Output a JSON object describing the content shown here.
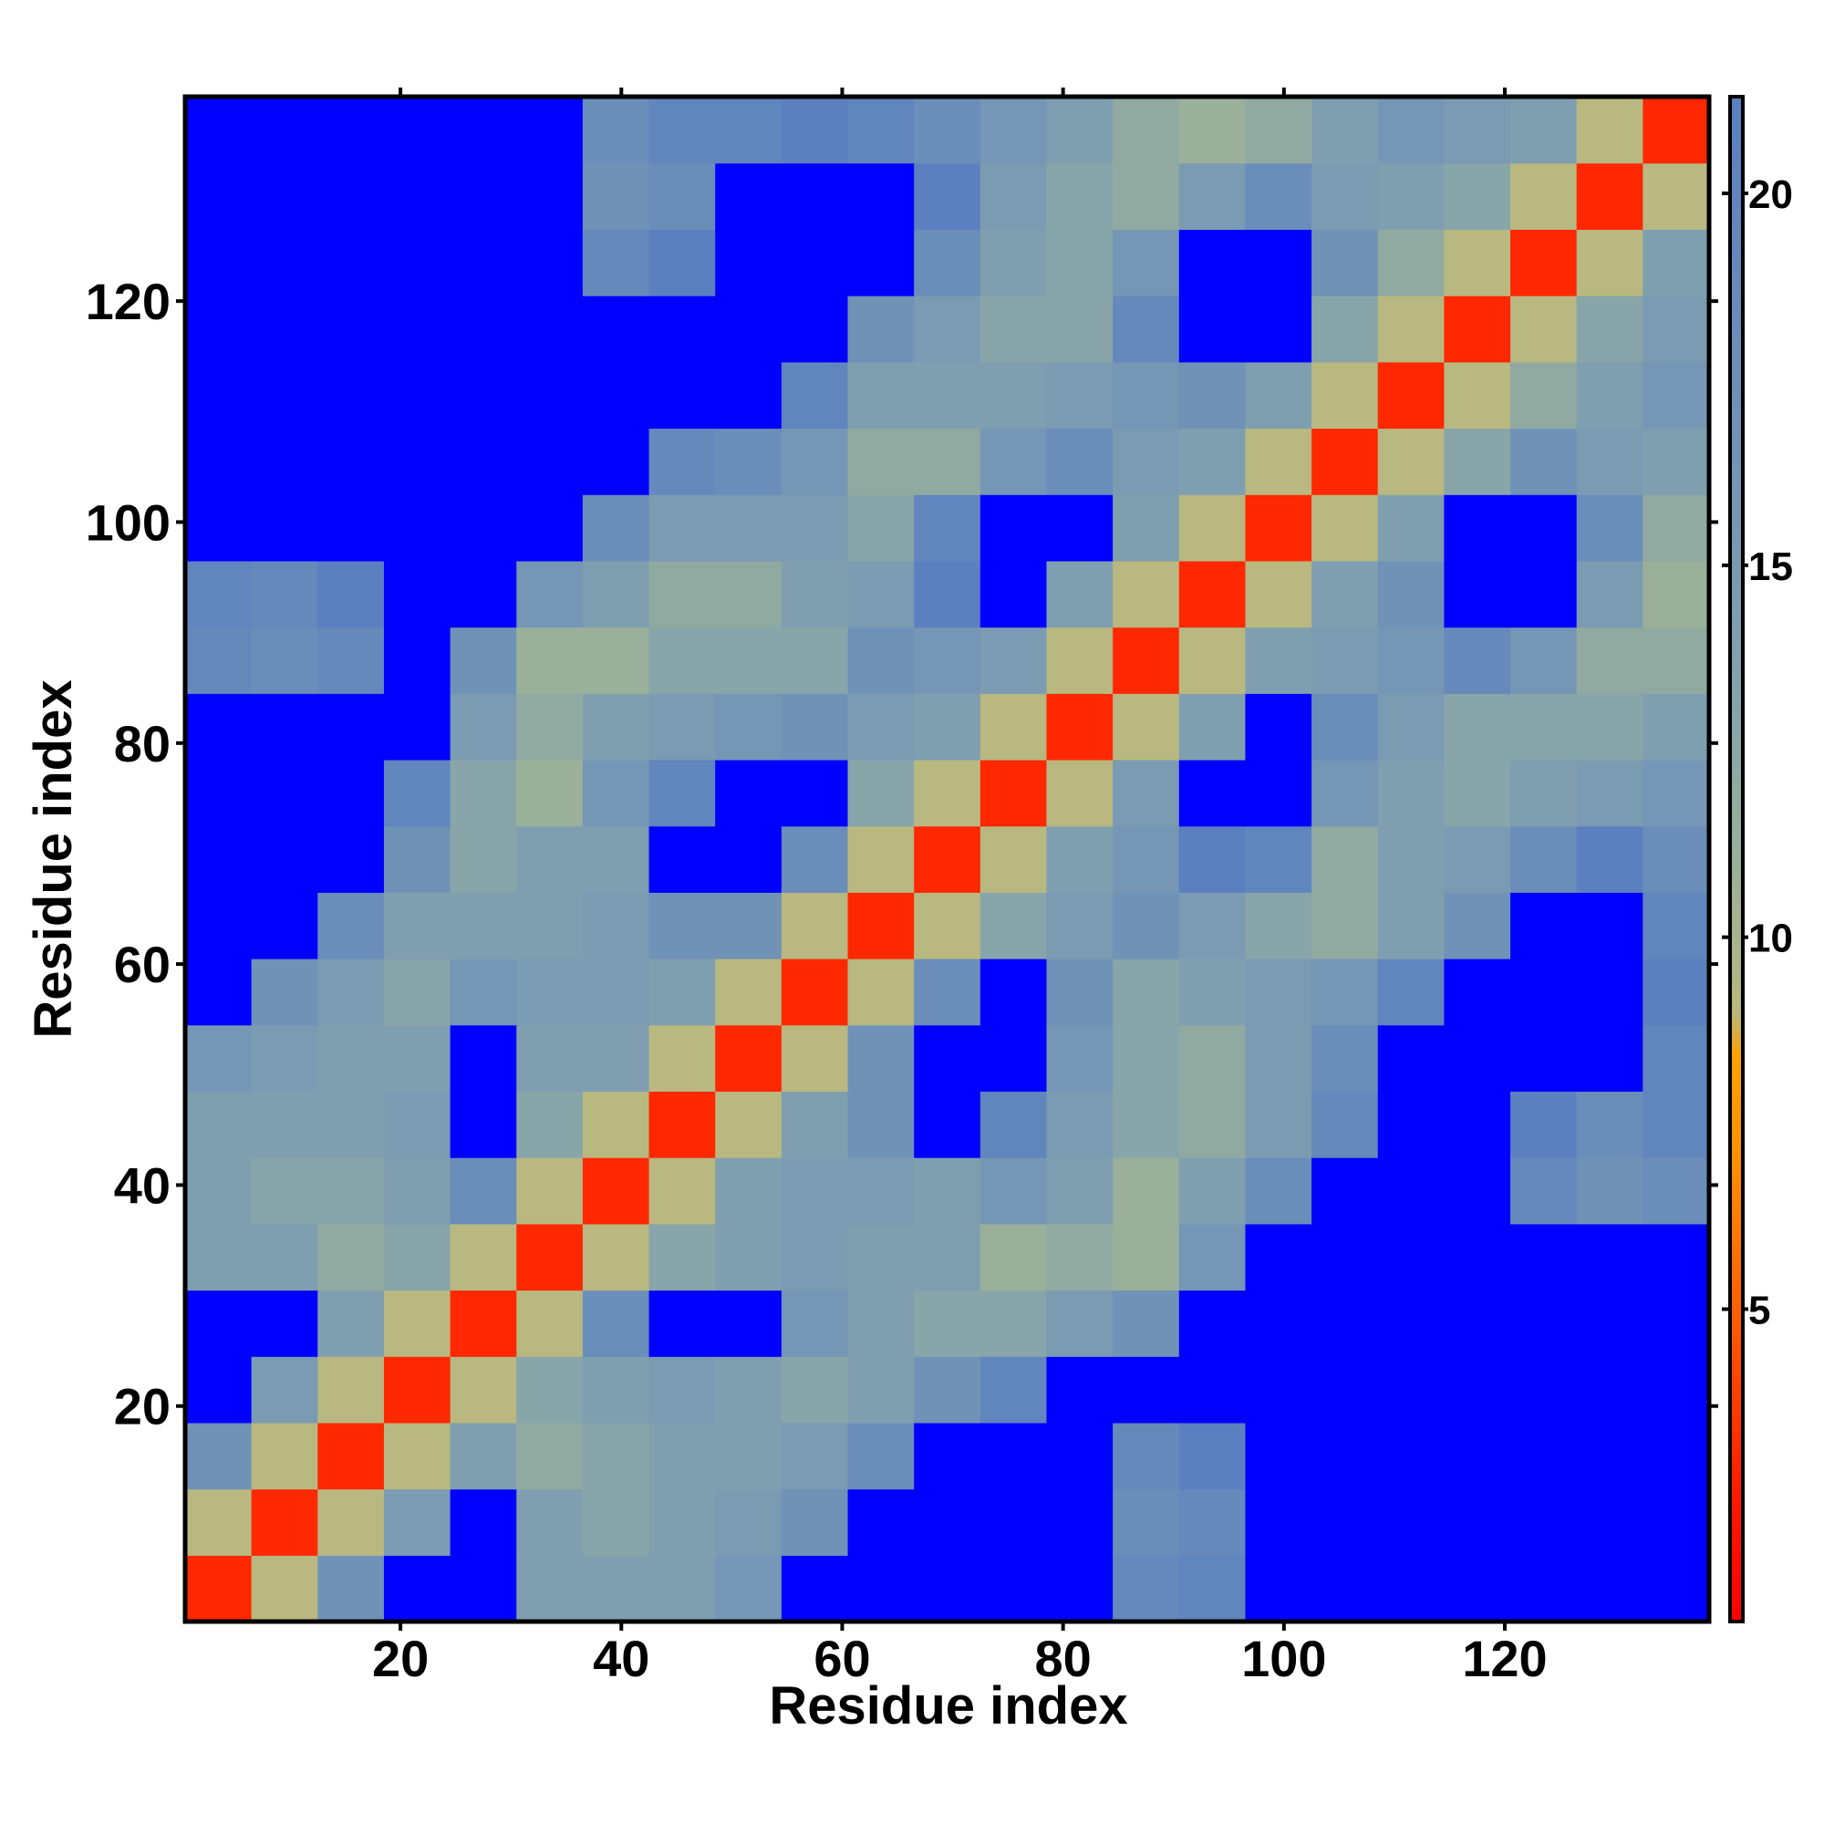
{
  "chart_data": {
    "type": "heatmap",
    "xlabel": "Residue index",
    "ylabel": "Residue index",
    "x": [
      1,
      7,
      13,
      19,
      25,
      31,
      37,
      43,
      49,
      55,
      61,
      67,
      73,
      79,
      85,
      91,
      97,
      103,
      109,
      115,
      121,
      127,
      133
    ],
    "y": [
      1,
      7,
      13,
      19,
      25,
      31,
      37,
      43,
      49,
      55,
      61,
      67,
      73,
      79,
      85,
      91,
      97,
      103,
      109,
      115,
      121,
      127,
      133
    ],
    "values": [
      [
        3,
        9,
        17,
        25,
        25,
        14,
        14,
        14,
        16,
        25,
        25,
        25,
        25,
        25,
        19,
        20,
        25,
        25,
        25,
        25,
        25,
        25,
        25
      ],
      [
        9,
        3,
        9,
        15,
        22,
        14,
        13,
        14,
        15,
        17,
        22,
        25,
        25,
        22,
        18,
        19,
        23,
        25,
        25,
        25,
        25,
        25,
        25
      ],
      [
        17,
        9,
        3,
        9,
        14,
        12,
        13,
        14,
        14,
        15,
        18,
        22,
        25,
        23,
        19,
        21,
        23,
        25,
        25,
        25,
        25,
        25,
        25
      ],
      [
        25,
        15,
        9,
        3,
        9,
        13,
        14,
        15,
        14,
        13,
        14,
        17,
        20,
        23,
        22,
        22,
        23,
        25,
        25,
        25,
        25,
        25,
        25
      ],
      [
        25,
        22,
        14,
        9,
        3,
        9,
        18,
        24,
        22,
        16,
        14,
        13,
        13,
        15,
        17,
        22,
        23,
        25,
        25,
        25,
        25,
        25,
        25
      ],
      [
        14,
        14,
        12,
        13,
        9,
        3,
        9,
        13,
        14,
        15,
        14,
        14,
        11,
        12,
        11,
        16,
        22,
        25,
        23,
        24,
        23,
        23,
        24
      ],
      [
        14,
        13,
        13,
        14,
        18,
        9,
        3,
        9,
        14,
        15,
        15,
        14,
        16,
        14,
        11,
        14,
        18,
        22,
        23,
        24,
        19,
        17,
        18
      ],
      [
        14,
        14,
        14,
        15,
        24,
        13,
        9,
        3,
        9,
        14,
        17,
        22,
        20,
        15,
        13,
        12,
        15,
        19,
        22,
        24,
        21,
        18,
        20
      ],
      [
        16,
        15,
        14,
        14,
        22,
        14,
        14,
        9,
        3,
        9,
        17,
        25,
        24,
        16,
        13,
        12,
        15,
        18,
        22,
        25,
        25,
        22,
        20
      ],
      [
        25,
        17,
        15,
        13,
        16,
        15,
        15,
        14,
        9,
        3,
        9,
        18,
        22,
        17,
        13,
        14,
        15,
        16,
        20,
        24,
        25,
        23,
        21
      ],
      [
        25,
        22,
        18,
        14,
        14,
        14,
        15,
        17,
        17,
        9,
        3,
        9,
        13,
        15,
        17,
        15,
        13,
        12,
        14,
        17,
        22,
        24,
        20
      ],
      [
        25,
        25,
        22,
        17,
        13,
        14,
        14,
        22,
        25,
        18,
        9,
        3,
        9,
        14,
        16,
        21,
        20,
        12,
        14,
        15,
        18,
        21,
        18
      ],
      [
        25,
        25,
        25,
        20,
        13,
        11,
        16,
        20,
        24,
        22,
        13,
        9,
        3,
        9,
        15,
        23,
        25,
        16,
        14,
        13,
        14,
        15,
        16
      ],
      [
        25,
        22,
        23,
        23,
        15,
        12,
        14,
        15,
        16,
        17,
        15,
        14,
        9,
        3,
        9,
        14,
        22,
        18,
        15,
        13,
        13,
        13,
        14
      ],
      [
        19,
        18,
        19,
        22,
        17,
        11,
        11,
        13,
        13,
        13,
        17,
        16,
        15,
        9,
        3,
        9,
        14,
        15,
        16,
        19,
        16,
        12,
        12
      ],
      [
        20,
        19,
        21,
        22,
        22,
        16,
        14,
        12,
        12,
        14,
        15,
        21,
        23,
        14,
        9,
        3,
        9,
        14,
        17,
        24,
        25,
        15,
        11
      ],
      [
        25,
        23,
        23,
        23,
        23,
        22,
        18,
        15,
        15,
        15,
        13,
        20,
        25,
        22,
        14,
        9,
        3,
        9,
        14,
        22,
        25,
        18,
        12
      ],
      [
        25,
        25,
        25,
        25,
        25,
        25,
        22,
        19,
        18,
        16,
        12,
        12,
        16,
        18,
        15,
        14,
        9,
        3,
        9,
        13,
        17,
        15,
        14
      ],
      [
        25,
        25,
        25,
        25,
        25,
        23,
        23,
        22,
        22,
        20,
        14,
        14,
        14,
        15,
        16,
        17,
        14,
        9,
        3,
        9,
        12,
        14,
        16
      ],
      [
        25,
        25,
        25,
        25,
        25,
        24,
        24,
        24,
        25,
        24,
        17,
        15,
        13,
        13,
        19,
        24,
        22,
        13,
        9,
        3,
        9,
        13,
        15
      ],
      [
        25,
        25,
        25,
        25,
        25,
        23,
        19,
        21,
        25,
        25,
        22,
        18,
        14,
        13,
        16,
        25,
        25,
        17,
        12,
        9,
        3,
        9,
        14
      ],
      [
        25,
        25,
        25,
        25,
        25,
        23,
        17,
        18,
        22,
        23,
        24,
        21,
        15,
        13,
        12,
        15,
        18,
        15,
        14,
        13,
        9,
        3,
        9
      ],
      [
        25,
        25,
        25,
        25,
        25,
        24,
        18,
        20,
        20,
        21,
        20,
        18,
        16,
        14,
        12,
        11,
        12,
        14,
        16,
        15,
        14,
        9,
        3
      ]
    ],
    "xlim": [
      0.5,
      138.5
    ],
    "ylim": [
      0.5,
      138.5
    ],
    "xticks": [
      20,
      40,
      60,
      80,
      100,
      120
    ],
    "yticks": [
      20,
      40,
      60,
      80,
      100,
      120
    ],
    "clim": [
      0.8,
      21.3
    ],
    "cticks": [
      5,
      10,
      15,
      20
    ],
    "colorscale": [
      {
        "value": 0.8,
        "color": "#ff0000"
      },
      {
        "value": 2.5,
        "color": "#ff1a00"
      },
      {
        "value": 5,
        "color": "#ff6000"
      },
      {
        "value": 7,
        "color": "#ff9000"
      },
      {
        "value": 8.4,
        "color": "#ffa200"
      },
      {
        "value": 9,
        "color": "#b8b880"
      },
      {
        "value": 11,
        "color": "#9ab09a"
      },
      {
        "value": 14,
        "color": "#7f9fb0"
      },
      {
        "value": 21.3,
        "color": "#5b7fc0"
      }
    ],
    "over_color": "#0000ff"
  }
}
